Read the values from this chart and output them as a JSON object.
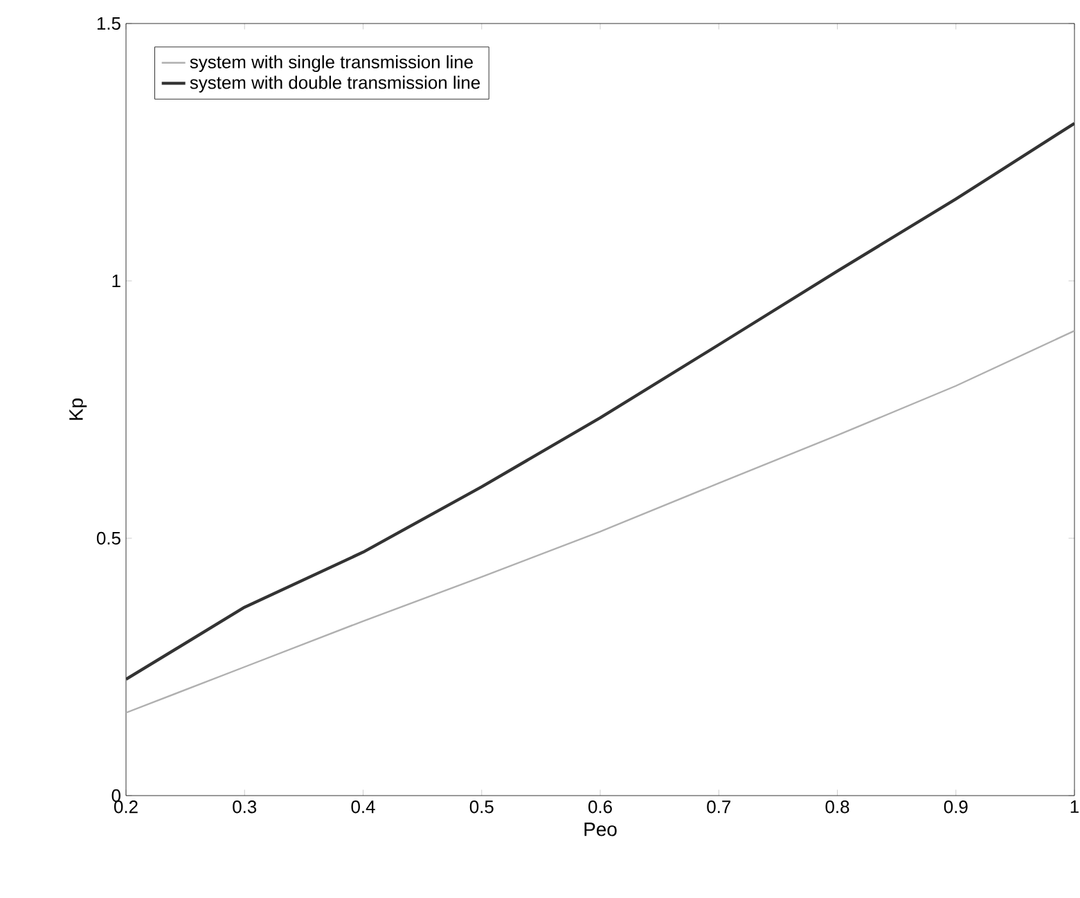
{
  "chart_data": {
    "type": "line",
    "xlabel": "Peo",
    "ylabel": "Kp",
    "x": [
      0.2,
      0.3,
      0.4,
      0.5,
      0.6,
      0.7,
      0.8,
      0.9,
      1.0
    ],
    "xlim": [
      0.2,
      1
    ],
    "ylim": [
      0,
      1.5
    ],
    "xticks": [
      0.2,
      0.3,
      0.4,
      0.5,
      0.6,
      0.7,
      0.8,
      0.9,
      1
    ],
    "yticks": [
      0,
      0.5,
      1,
      1.5
    ],
    "legend": "top left",
    "grid": false,
    "series": [
      {
        "name": "system with single transmission line",
        "color": "#b0b0b0",
        "values": [
          0.161,
          0.25,
          0.339,
          0.425,
          0.513,
          0.607,
          0.7,
          0.796,
          0.903
        ]
      },
      {
        "name": "system with double transmission line",
        "color": "#333333",
        "values": [
          0.226,
          0.366,
          0.473,
          0.6,
          0.734,
          0.876,
          1.019,
          1.159,
          1.306
        ]
      }
    ]
  }
}
